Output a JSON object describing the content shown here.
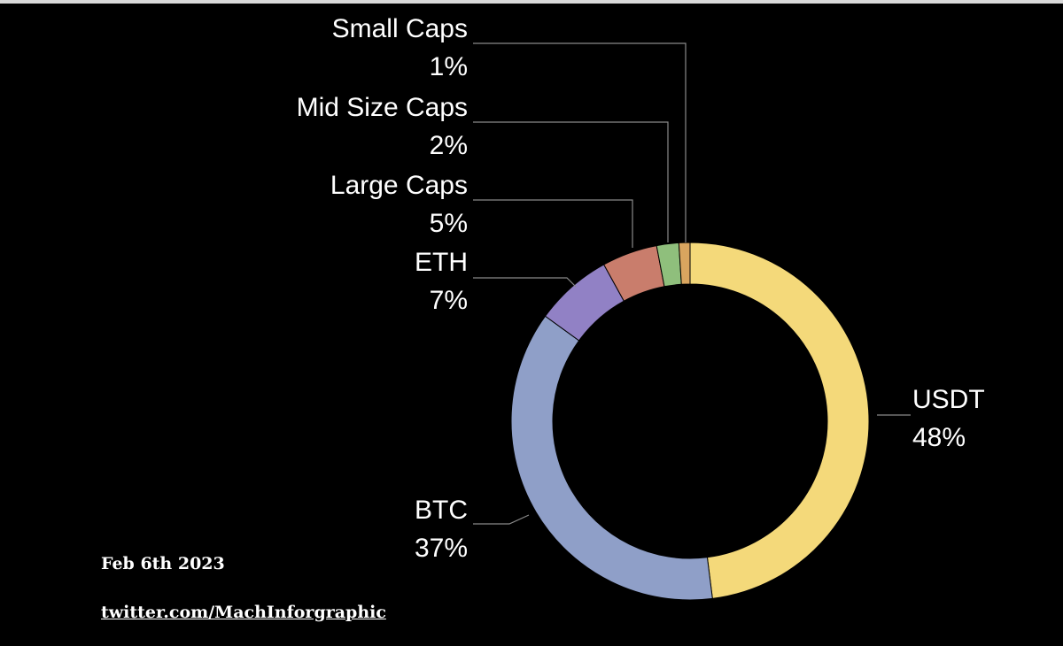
{
  "chart_data": {
    "type": "pie",
    "variant": "donut",
    "categories": [
      "USDT",
      "BTC",
      "ETH",
      "Large Caps",
      "Mid Size Caps",
      "Small Caps"
    ],
    "values": [
      48,
      37,
      7,
      5,
      2,
      1
    ],
    "value_labels": [
      "48%",
      "37%",
      "7%",
      "5%",
      "2%",
      "1%"
    ],
    "colors": [
      "#f4d97a",
      "#8f9fc8",
      "#9181c5",
      "#c97d6c",
      "#8fbf7c",
      "#d9a55f"
    ],
    "title": "",
    "legend": "none"
  },
  "footer": {
    "date": "Feb 6th 2023",
    "link": "twitter.com/MachInforgraphic"
  }
}
